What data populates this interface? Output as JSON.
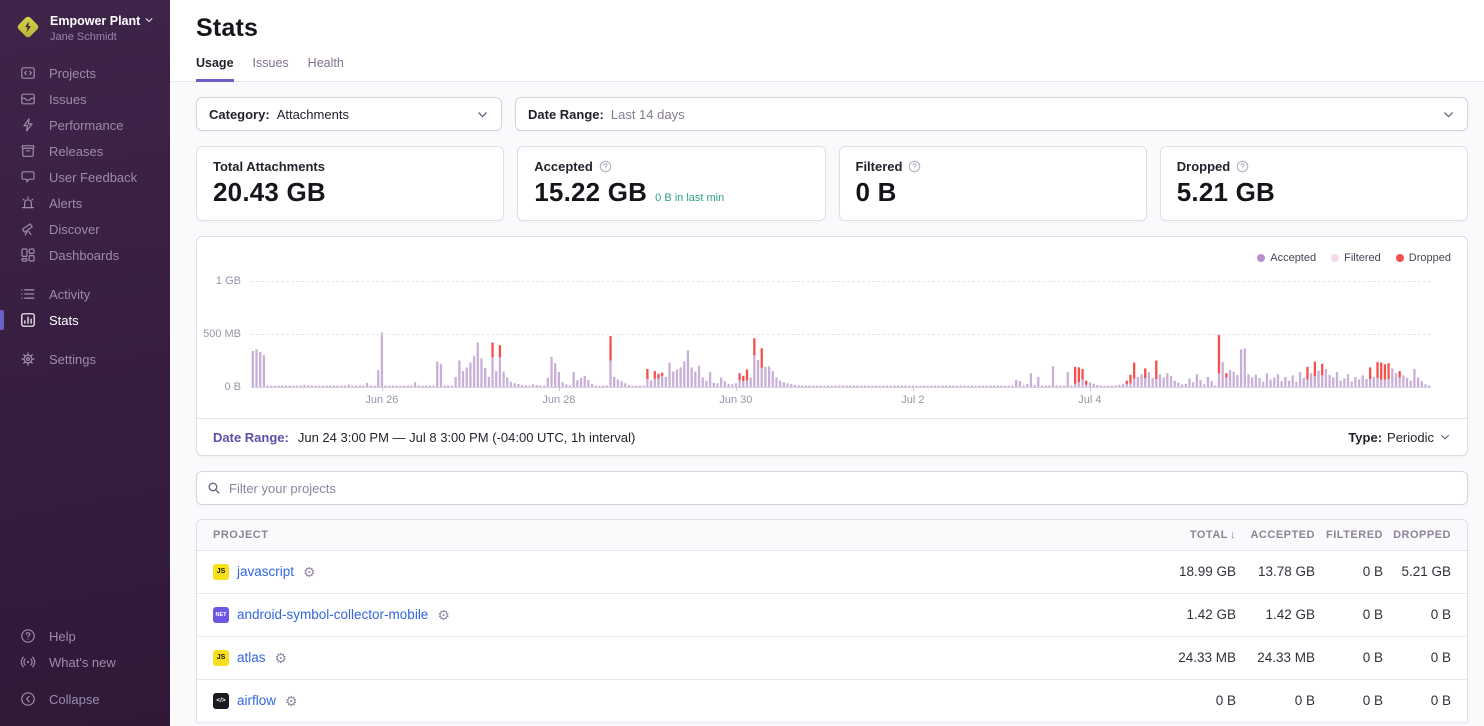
{
  "colors": {
    "accent": "#6c5fc7",
    "accepted_bar": "#c9aed8",
    "accepted_dot": "#b78fcc",
    "filtered_dot": "#f6d9ea",
    "dropped": "#f4504b",
    "link": "#3166e0",
    "green": "#2ba185"
  },
  "sidebar": {
    "org_name": "Empower Plant",
    "user_name": "Jane Schmidt",
    "sections": [
      {
        "items": [
          {
            "id": "projects",
            "label": "Projects",
            "icon": "projects-icon"
          },
          {
            "id": "issues",
            "label": "Issues",
            "icon": "issues-icon"
          },
          {
            "id": "performance",
            "label": "Performance",
            "icon": "performance-icon"
          },
          {
            "id": "releases",
            "label": "Releases",
            "icon": "releases-icon"
          },
          {
            "id": "user-feedback",
            "label": "User Feedback",
            "icon": "feedback-icon"
          },
          {
            "id": "alerts",
            "label": "Alerts",
            "icon": "alerts-icon"
          },
          {
            "id": "discover",
            "label": "Discover",
            "icon": "discover-icon"
          },
          {
            "id": "dashboards",
            "label": "Dashboards",
            "icon": "dashboards-icon"
          }
        ]
      },
      {
        "items": [
          {
            "id": "activity",
            "label": "Activity",
            "icon": "activity-icon"
          },
          {
            "id": "stats",
            "label": "Stats",
            "icon": "stats-icon",
            "active": true
          }
        ]
      },
      {
        "items": [
          {
            "id": "settings",
            "label": "Settings",
            "icon": "settings-icon"
          }
        ]
      }
    ],
    "bottom_sections": [
      {
        "items": [
          {
            "id": "help",
            "label": "Help",
            "icon": "help-icon"
          },
          {
            "id": "whats-new",
            "label": "What's new",
            "icon": "whats-new-icon"
          }
        ]
      },
      {
        "items": [
          {
            "id": "collapse",
            "label": "Collapse",
            "icon": "collapse-icon"
          }
        ]
      }
    ]
  },
  "header": {
    "title": "Stats",
    "tabs": [
      {
        "id": "usage",
        "label": "Usage",
        "active": true
      },
      {
        "id": "issues",
        "label": "Issues"
      },
      {
        "id": "health",
        "label": "Health"
      }
    ]
  },
  "filters": {
    "category_label": "Category:",
    "category_value": "Attachments",
    "daterange_label": "Date Range:",
    "daterange_value": "Last 14 days"
  },
  "cards": [
    {
      "id": "total-attachments",
      "title": "Total Attachments",
      "value": "20.43 GB"
    },
    {
      "id": "accepted",
      "title": "Accepted",
      "help": true,
      "value": "15.22 GB",
      "sub": "0 B in last min"
    },
    {
      "id": "filtered",
      "title": "Filtered",
      "help": true,
      "value": "0 B"
    },
    {
      "id": "dropped",
      "title": "Dropped",
      "help": true,
      "value": "5.21 GB"
    }
  ],
  "chart": {
    "type": "bar",
    "units": "MB",
    "legend": [
      {
        "label": "Accepted",
        "color": "#b78fcc"
      },
      {
        "label": "Filtered",
        "color": "#f6d9ea"
      },
      {
        "label": "Dropped",
        "color": "#f4504b"
      }
    ],
    "y_ticks": [
      {
        "label": "1 GB",
        "mb": 1000
      },
      {
        "label": "500 MB",
        "mb": 500
      },
      {
        "label": "0 B",
        "mb": 0
      }
    ],
    "x_ticks": [
      {
        "label": "Jun 26",
        "index": 35
      },
      {
        "label": "Jun 28",
        "index": 83
      },
      {
        "label": "Jun 30",
        "index": 131
      },
      {
        "label": "Jul 2",
        "index": 179
      },
      {
        "label": "Jul 4",
        "index": 227
      }
    ],
    "bars": [
      [
        340,
        0
      ],
      [
        355,
        0
      ],
      [
        330,
        0
      ],
      [
        300,
        0
      ],
      [
        6,
        0,
        10
      ],
      [
        20,
        0
      ],
      [
        6,
        0,
        11
      ],
      [
        22,
        0
      ],
      [
        6,
        0,
        4
      ],
      [
        38,
        0
      ],
      [
        8,
        0,
        2
      ],
      [
        160,
        0
      ],
      [
        515,
        0
      ],
      [
        10,
        0
      ],
      [
        8,
        0
      ],
      [
        6,
        0,
        6
      ],
      [
        45,
        0
      ],
      [
        8,
        0,
        4
      ],
      [
        10,
        0
      ],
      [
        240,
        0
      ],
      [
        215,
        0
      ],
      [
        12,
        0
      ],
      [
        8,
        0
      ],
      [
        10,
        0
      ],
      [
        95,
        0
      ],
      [
        250,
        0
      ],
      [
        150,
        0
      ],
      [
        185,
        0
      ],
      [
        230,
        0
      ],
      [
        290,
        0
      ],
      [
        420,
        0
      ],
      [
        270,
        0
      ],
      [
        180,
        0
      ],
      [
        95,
        0
      ],
      [
        280,
        140
      ],
      [
        150,
        0
      ],
      [
        280,
        115
      ],
      [
        145,
        0
      ],
      [
        90,
        0
      ],
      [
        50,
        0
      ],
      [
        35,
        0
      ],
      [
        28,
        0
      ],
      [
        20,
        0
      ],
      [
        14,
        0
      ],
      [
        10,
        0
      ],
      [
        25,
        0
      ],
      [
        18,
        0
      ],
      [
        10,
        0
      ],
      [
        8,
        0
      ],
      [
        85,
        0
      ],
      [
        285,
        0
      ],
      [
        225,
        0
      ],
      [
        140,
        0
      ],
      [
        45,
        0
      ],
      [
        25,
        0
      ],
      [
        15,
        0
      ],
      [
        140,
        0
      ],
      [
        65,
        0
      ],
      [
        85,
        0
      ],
      [
        105,
        0
      ],
      [
        65,
        0
      ],
      [
        30,
        0
      ],
      [
        10,
        0,
        4
      ],
      [
        250,
        230
      ],
      [
        95,
        0
      ],
      [
        70,
        0
      ],
      [
        55,
        0
      ],
      [
        35,
        0
      ],
      [
        18,
        0
      ],
      [
        12,
        0
      ],
      [
        8,
        0,
        3
      ],
      [
        75,
        95
      ],
      [
        60,
        0
      ],
      [
        80,
        70
      ],
      [
        80,
        45
      ],
      [
        105,
        30
      ],
      [
        95,
        0
      ],
      [
        230,
        0
      ],
      [
        145,
        0
      ],
      [
        165,
        0
      ],
      [
        185,
        0
      ],
      [
        240,
        0
      ],
      [
        345,
        0
      ],
      [
        185,
        0
      ],
      [
        145,
        0
      ],
      [
        200,
        0
      ],
      [
        90,
        0
      ],
      [
        60,
        0
      ],
      [
        140,
        0
      ],
      [
        40,
        0
      ],
      [
        35,
        0
      ],
      [
        90,
        0
      ],
      [
        55,
        0
      ],
      [
        30,
        0
      ],
      [
        25,
        0
      ],
      [
        35,
        0
      ],
      [
        65,
        65
      ],
      [
        55,
        50
      ],
      [
        60,
        105
      ],
      [
        90,
        0
      ],
      [
        300,
        160
      ],
      [
        255,
        0
      ],
      [
        180,
        185
      ],
      [
        190,
        0
      ],
      [
        195,
        0
      ],
      [
        150,
        0
      ],
      [
        90,
        0
      ],
      [
        60,
        0
      ],
      [
        45,
        0
      ],
      [
        35,
        0
      ],
      [
        28,
        0
      ],
      [
        20,
        0
      ],
      [
        15,
        0
      ],
      [
        7,
        0,
        11
      ],
      [
        15,
        0
      ],
      [
        7,
        0,
        14
      ],
      [
        12,
        0
      ],
      [
        7,
        0,
        14
      ],
      [
        10,
        0
      ],
      [
        7,
        0,
        16
      ],
      [
        65,
        0
      ],
      [
        55,
        0
      ],
      [
        10,
        0
      ],
      [
        30,
        0
      ],
      [
        130,
        0
      ],
      [
        20,
        0
      ],
      [
        95,
        0
      ],
      [
        8,
        0,
        3
      ],
      [
        195,
        0
      ],
      [
        15,
        0
      ],
      [
        10,
        0
      ],
      [
        8,
        0
      ],
      [
        140,
        0
      ],
      [
        12,
        0
      ],
      [
        30,
        160
      ],
      [
        45,
        140
      ],
      [
        70,
        100
      ],
      [
        20,
        40
      ],
      [
        45,
        0
      ],
      [
        30,
        0
      ],
      [
        18,
        0
      ],
      [
        10,
        0
      ],
      [
        7,
        0,
        4
      ],
      [
        20,
        0
      ],
      [
        30,
        0
      ],
      [
        25,
        35
      ],
      [
        35,
        80
      ],
      [
        80,
        150
      ],
      [
        95,
        0
      ],
      [
        120,
        0
      ],
      [
        85,
        90
      ],
      [
        140,
        0
      ],
      [
        85,
        0
      ],
      [
        75,
        175
      ],
      [
        120,
        0
      ],
      [
        90,
        0
      ],
      [
        130,
        0
      ],
      [
        105,
        0
      ],
      [
        60,
        0
      ],
      [
        40,
        0
      ],
      [
        25,
        0
      ],
      [
        30,
        0
      ],
      [
        80,
        0
      ],
      [
        45,
        0
      ],
      [
        120,
        0
      ],
      [
        65,
        0
      ],
      [
        25,
        0
      ],
      [
        95,
        0
      ],
      [
        55,
        0
      ],
      [
        15,
        0
      ],
      [
        130,
        360
      ],
      [
        235,
        0
      ],
      [
        90,
        40
      ],
      [
        160,
        0
      ],
      [
        145,
        0
      ],
      [
        115,
        0
      ],
      [
        355,
        0
      ],
      [
        365,
        0
      ],
      [
        120,
        0
      ],
      [
        90,
        0
      ],
      [
        115,
        0
      ],
      [
        85,
        0
      ],
      [
        50,
        0
      ],
      [
        130,
        0
      ],
      [
        70,
        0
      ],
      [
        90,
        0
      ],
      [
        120,
        0
      ],
      [
        55,
        0
      ],
      [
        95,
        0
      ],
      [
        60,
        0
      ],
      [
        110,
        0
      ],
      [
        50,
        0
      ],
      [
        140,
        0
      ],
      [
        85,
        0
      ],
      [
        70,
        120
      ],
      [
        130,
        0
      ],
      [
        100,
        140
      ],
      [
        155,
        0
      ],
      [
        110,
        110
      ],
      [
        170,
        0
      ],
      [
        115,
        0
      ],
      [
        90,
        0
      ],
      [
        140,
        0
      ],
      [
        60,
        0
      ],
      [
        80,
        0
      ],
      [
        120,
        0
      ],
      [
        50,
        0
      ],
      [
        95,
        0
      ],
      [
        70,
        0
      ],
      [
        110,
        0
      ],
      [
        75,
        0
      ],
      [
        75,
        110
      ],
      [
        95,
        0
      ],
      [
        85,
        150
      ],
      [
        70,
        160
      ],
      [
        70,
        145
      ],
      [
        75,
        150
      ],
      [
        175,
        0
      ],
      [
        130,
        0
      ],
      [
        90,
        60
      ],
      [
        110,
        0
      ],
      [
        85,
        0
      ],
      [
        60,
        0
      ],
      [
        170,
        0
      ],
      [
        90,
        0
      ],
      [
        55,
        0
      ],
      [
        25,
        0
      ],
      [
        10,
        0
      ]
    ],
    "footer": {
      "date_range_label": "Date Range:",
      "date_range_value": "Jun 24 3:00 PM — Jul 8 3:00 PM (-04:00 UTC, 1h interval)",
      "type_label": "Type:",
      "type_value": "Periodic"
    }
  },
  "search": {
    "placeholder": "Filter your projects"
  },
  "table": {
    "columns": [
      {
        "id": "project",
        "label": "PROJECT",
        "align": "left"
      },
      {
        "id": "total",
        "label": "TOTAL",
        "align": "right",
        "sorted": "desc"
      },
      {
        "id": "accepted",
        "label": "ACCEPTED",
        "align": "right"
      },
      {
        "id": "filtered",
        "label": "FILTERED",
        "align": "right"
      },
      {
        "id": "dropped",
        "label": "DROPPED",
        "align": "right"
      }
    ],
    "rows": [
      {
        "platform": "js",
        "badge": "JS",
        "name": "javascript",
        "total": "18.99 GB",
        "accepted": "13.78 GB",
        "filtered": "0 B",
        "dropped": "5.21 GB"
      },
      {
        "platform": "dotnet",
        "badge": "NET",
        "name": "android-symbol-collector-mobile",
        "total": "1.42 GB",
        "accepted": "1.42 GB",
        "filtered": "0 B",
        "dropped": "0 B"
      },
      {
        "platform": "js",
        "badge": "JS",
        "name": "atlas",
        "total": "24.33 MB",
        "accepted": "24.33 MB",
        "filtered": "0 B",
        "dropped": "0 B"
      },
      {
        "platform": "other",
        "badge": "&lt;/&gt;",
        "name": "airflow",
        "total": "0 B",
        "accepted": "0 B",
        "filtered": "0 B",
        "dropped": "0 B"
      }
    ]
  }
}
